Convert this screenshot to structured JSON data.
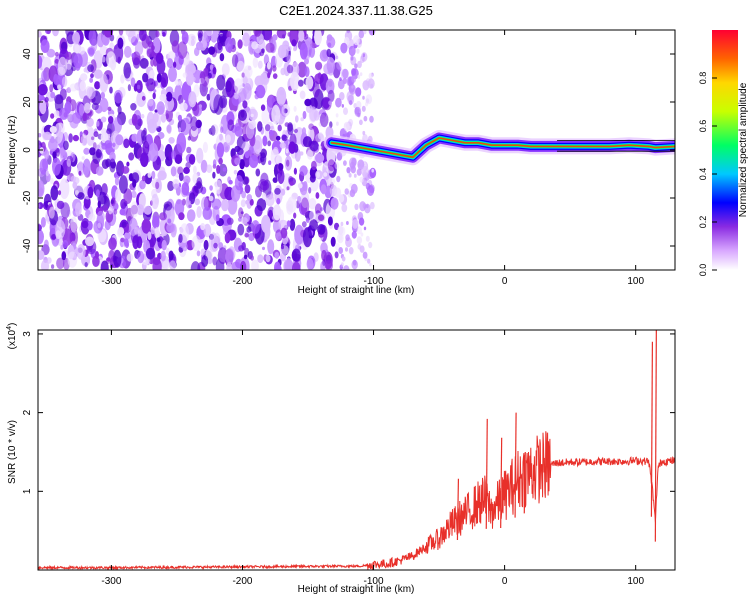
{
  "title": "C2E1.2024.337.11.38.G25",
  "chart_data": [
    {
      "type": "heatmap",
      "title": "C2E1.2024.337.11.38.G25",
      "xlabel": "Height of straight line (km)",
      "ylabel": "Frequency (Hz)",
      "xlim": [
        -356,
        130
      ],
      "ylim": [
        -50,
        50
      ],
      "x_ticks": [
        -300,
        -200,
        -100,
        0,
        100
      ],
      "y_ticks": [
        -40,
        -20,
        0,
        20,
        40
      ],
      "ridge": {
        "x": [
          -132,
          -120,
          -110,
          -100,
          -90,
          -80,
          -70,
          -60,
          -50,
          -40,
          -30,
          -20,
          -10,
          0,
          10,
          20,
          40,
          60,
          80,
          95,
          110,
          115,
          130
        ],
        "y": [
          3,
          2,
          1,
          0,
          -1,
          -2,
          -3,
          2,
          5,
          4,
          3,
          3,
          2,
          2,
          2,
          1.5,
          1.5,
          1.5,
          1.5,
          2,
          1.5,
          1,
          1.5
        ]
      },
      "colorbar": {
        "label": "Normalized spectral amplitude",
        "ticks": [
          0.0,
          0.2,
          0.4,
          0.6,
          0.8
        ],
        "range": [
          0,
          1
        ]
      },
      "colors": [
        "#ffffff",
        "#e6c8ff",
        "#9b42ff",
        "#5a00e6",
        "#0000ff",
        "#00c8ff",
        "#00ff64",
        "#ffff00",
        "#ff8c00",
        "#ff0000"
      ]
    },
    {
      "type": "line",
      "xlabel": "Height of straight line (km)",
      "ylabel": "SNR (10 * v/v)",
      "scale_note": "(x10",
      "scale_exp": "4",
      "scale_close": ")",
      "xlim": [
        -356,
        130
      ],
      "ylim": [
        0,
        3.05
      ],
      "x_ticks": [
        -300,
        -200,
        -100,
        0,
        100
      ],
      "y_ticks": [
        1,
        2,
        3
      ],
      "series": [
        {
          "color": "#e8302a",
          "x": [
            -356,
            -300,
            -200,
            -110,
            -100,
            -90,
            -80,
            -70,
            -60,
            -50,
            -45,
            -40,
            -35,
            -30,
            -25,
            -20,
            -15,
            -10,
            -5,
            0,
            5,
            10,
            20,
            30,
            40,
            50,
            60,
            70,
            80,
            90,
            100,
            110,
            113,
            115,
            117,
            120,
            130
          ],
          "y": [
            0.03,
            0.03,
            0.04,
            0.05,
            0.07,
            0.08,
            0.12,
            0.18,
            0.3,
            0.4,
            0.5,
            0.58,
            0.65,
            0.7,
            0.78,
            0.85,
            0.9,
            0.75,
            0.85,
            0.95,
            1.05,
            1.15,
            1.25,
            1.32,
            1.36,
            1.37,
            1.37,
            1.38,
            1.38,
            1.38,
            1.39,
            1.38,
            1.0,
            0.6,
            1.3,
            1.38,
            1.39
          ]
        }
      ],
      "spikes": [
        {
          "x": -36,
          "y": 1.16
        },
        {
          "x": -14,
          "y": 1.92
        },
        {
          "x": -3,
          "y": 1.68
        },
        {
          "x": 8,
          "y": 2.0
        },
        {
          "x": 15,
          "y": 1.5
        },
        {
          "x": 112,
          "y": 2.9
        },
        {
          "x": 115,
          "y": 3.05
        }
      ]
    }
  ]
}
